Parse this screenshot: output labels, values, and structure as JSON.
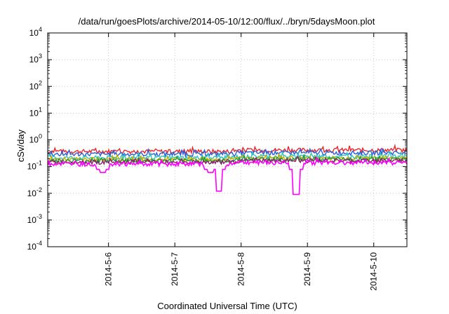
{
  "chart_data": {
    "type": "line",
    "title": "/data/run/goesPlots/archive/2014-05-10/12:00/flux/../bryn/5daysMoon.plot",
    "xlabel": "Coordinated Universal Time (UTC)",
    "ylabel": "cSv/day",
    "yscale": "log",
    "ylim": [
      0.0001,
      10000
    ],
    "y_ticks": [
      {
        "base": "10",
        "exp": "-4"
      },
      {
        "base": "10",
        "exp": "-3"
      },
      {
        "base": "10",
        "exp": "-2"
      },
      {
        "base": "10",
        "exp": "-1"
      },
      {
        "base": "10",
        "exp": "0"
      },
      {
        "base": "10",
        "exp": "1"
      },
      {
        "base": "10",
        "exp": "2"
      },
      {
        "base": "10",
        "exp": "3"
      },
      {
        "base": "10",
        "exp": "4"
      }
    ],
    "xlim": [
      "2014-05-05 02:00",
      "2014-05-10 12:00"
    ],
    "x_ticks": [
      "2014-5-6",
      "2014-5-7",
      "2014-5-8",
      "2014-5-9",
      "2014-5-10"
    ],
    "grid": true,
    "legend": "none",
    "series": [
      {
        "color": "#e8262b",
        "base": 0.38,
        "dips": []
      },
      {
        "color": "#2a5fd8",
        "base": 0.3,
        "dips": []
      },
      {
        "color": "#2ec4c0",
        "base": 0.22,
        "dips": []
      },
      {
        "color": "#c8b000",
        "base": 0.19,
        "dips": []
      },
      {
        "color": "#1f9a3a",
        "base": 0.17,
        "dips": []
      },
      {
        "color": "#8a1f6a",
        "base": 0.15,
        "dips": []
      },
      {
        "color": "#ff00ff",
        "base": 0.13,
        "dips": [
          {
            "at": "2014-05-05 22:00",
            "min": 0.06
          },
          {
            "at": "2014-05-07 13:00",
            "min": 0.06
          },
          {
            "at": "2014-05-07 16:00",
            "min": 0.012
          },
          {
            "at": "2014-05-08 20:00",
            "min": 0.009
          }
        ]
      }
    ]
  }
}
